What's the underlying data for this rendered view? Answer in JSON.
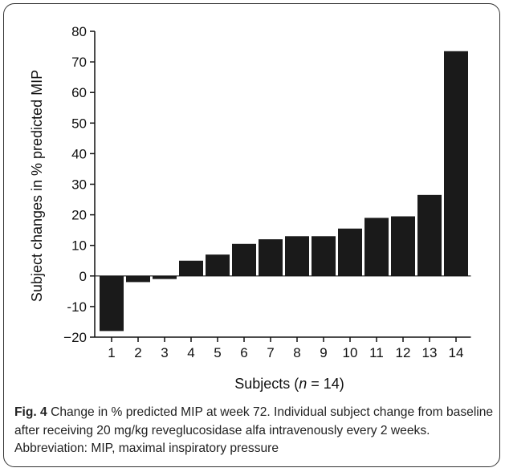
{
  "chart_data": {
    "type": "bar",
    "categories": [
      "1",
      "2",
      "3",
      "4",
      "5",
      "6",
      "7",
      "8",
      "9",
      "10",
      "11",
      "12",
      "13",
      "14"
    ],
    "values": [
      -18,
      -2,
      -1,
      5,
      7,
      10.5,
      12,
      13,
      13,
      15.5,
      19,
      19.5,
      26.5,
      73.5
    ],
    "ylabel": "Subject changes in % predicted MIP",
    "xlabel_prefix": "Subjects (",
    "xlabel_n": "n",
    "xlabel_suffix": " = 14)",
    "ylim": [
      -20,
      80
    ],
    "yticks": [
      80,
      70,
      60,
      50,
      40,
      30,
      20,
      10,
      0,
      -10,
      -20
    ],
    "ytick_labels": [
      "80",
      "70",
      "60",
      "50",
      "40",
      "30",
      "20",
      "10",
      "0",
      "-10",
      "−20"
    ],
    "bar_color": "#1a1a1a",
    "grid": false
  },
  "caption": {
    "label": "Fig. 4",
    "text": " Change in % predicted MIP at week 72. Individual subject change from baseline after receiving 20 mg/kg reveglucosidase alfa intravenously every 2 weeks. Abbreviation: MIP, maximal inspiratory pressure"
  }
}
